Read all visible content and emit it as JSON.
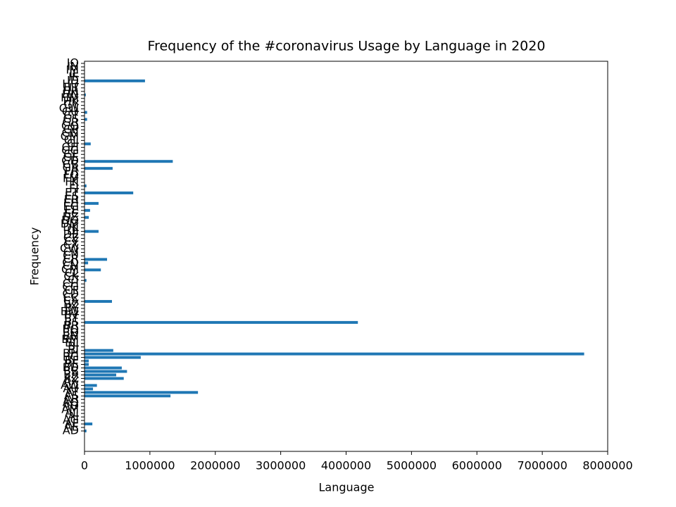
{
  "chart_data": {
    "type": "barh",
    "title": "Frequency of the #coronavirus Usage by Language in 2020",
    "x_label": "Language",
    "y_label": "Frequency",
    "categories": [
      "AD",
      "AE",
      "AF",
      "AG",
      "AI",
      "AL",
      "AM",
      "AO",
      "AQ",
      "AR",
      "AS",
      "AT",
      "AU",
      "AW",
      "AX",
      "AZ",
      "BA",
      "BB",
      "BD",
      "BE",
      "BF",
      "BG",
      "BH",
      "BI",
      "BJ",
      "BL",
      "BM",
      "BN",
      "BO",
      "BQ",
      "BR",
      "BS",
      "BT",
      "BV",
      "BW",
      "BY",
      "BZ",
      "CA",
      "CC",
      "CD",
      "CF",
      "CG",
      "CH",
      "CI",
      "CK",
      "CL",
      "CM",
      "CN",
      "CO",
      "CR",
      "CU",
      "CV",
      "CW",
      "CX",
      "CY",
      "CZ",
      "DE",
      "DJ",
      "DK",
      "DM",
      "DO",
      "DZ",
      "EC",
      "EE",
      "EG",
      "EH",
      "ER",
      "ES",
      "ET",
      "FI",
      "FJ",
      "FK",
      "FM",
      "FO",
      "FR",
      "GA",
      "GB",
      "GD",
      "GE",
      "GF",
      "GG",
      "GH",
      "GI",
      "GL",
      "GM",
      "GN",
      "GP",
      "GQ",
      "GR",
      "GS",
      "GT",
      "GU",
      "GW",
      "GY",
      "HK",
      "HM",
      "HN",
      "HR",
      "HT",
      "HU",
      "ID",
      "IE",
      "IL",
      "IM",
      "IN",
      "IO"
    ],
    "values": [
      30000,
      0,
      120000,
      0,
      0,
      0,
      0,
      0,
      0,
      0,
      1315000,
      1735000,
      130000,
      190000,
      0,
      600000,
      485000,
      650000,
      570000,
      65000,
      65000,
      860000,
      7640000,
      440000,
      0,
      0,
      0,
      0,
      0,
      0,
      0,
      4180000,
      0,
      0,
      0,
      0,
      0,
      420000,
      0,
      0,
      0,
      0,
      0,
      30000,
      0,
      0,
      250000,
      0,
      55000,
      345000,
      0,
      0,
      0,
      0,
      0,
      0,
      0,
      215000,
      0,
      0,
      0,
      65000,
      0,
      85000,
      0,
      215000,
      0,
      0,
      745000,
      0,
      30000,
      0,
      0,
      0,
      0,
      430000,
      0,
      1350000,
      0,
      0,
      0,
      0,
      95000,
      0,
      0,
      0,
      0,
      0,
      0,
      40000,
      0,
      40000,
      0,
      0,
      0,
      0,
      20000,
      0,
      0,
      0,
      925000,
      0,
      0,
      0,
      0,
      0
    ],
    "color": "#1f77b4",
    "xlim": [
      0,
      8000000
    ],
    "xticks": [
      0,
      1000000,
      2000000,
      3000000,
      4000000,
      5000000,
      6000000,
      7000000,
      8000000
    ],
    "grid": false
  }
}
